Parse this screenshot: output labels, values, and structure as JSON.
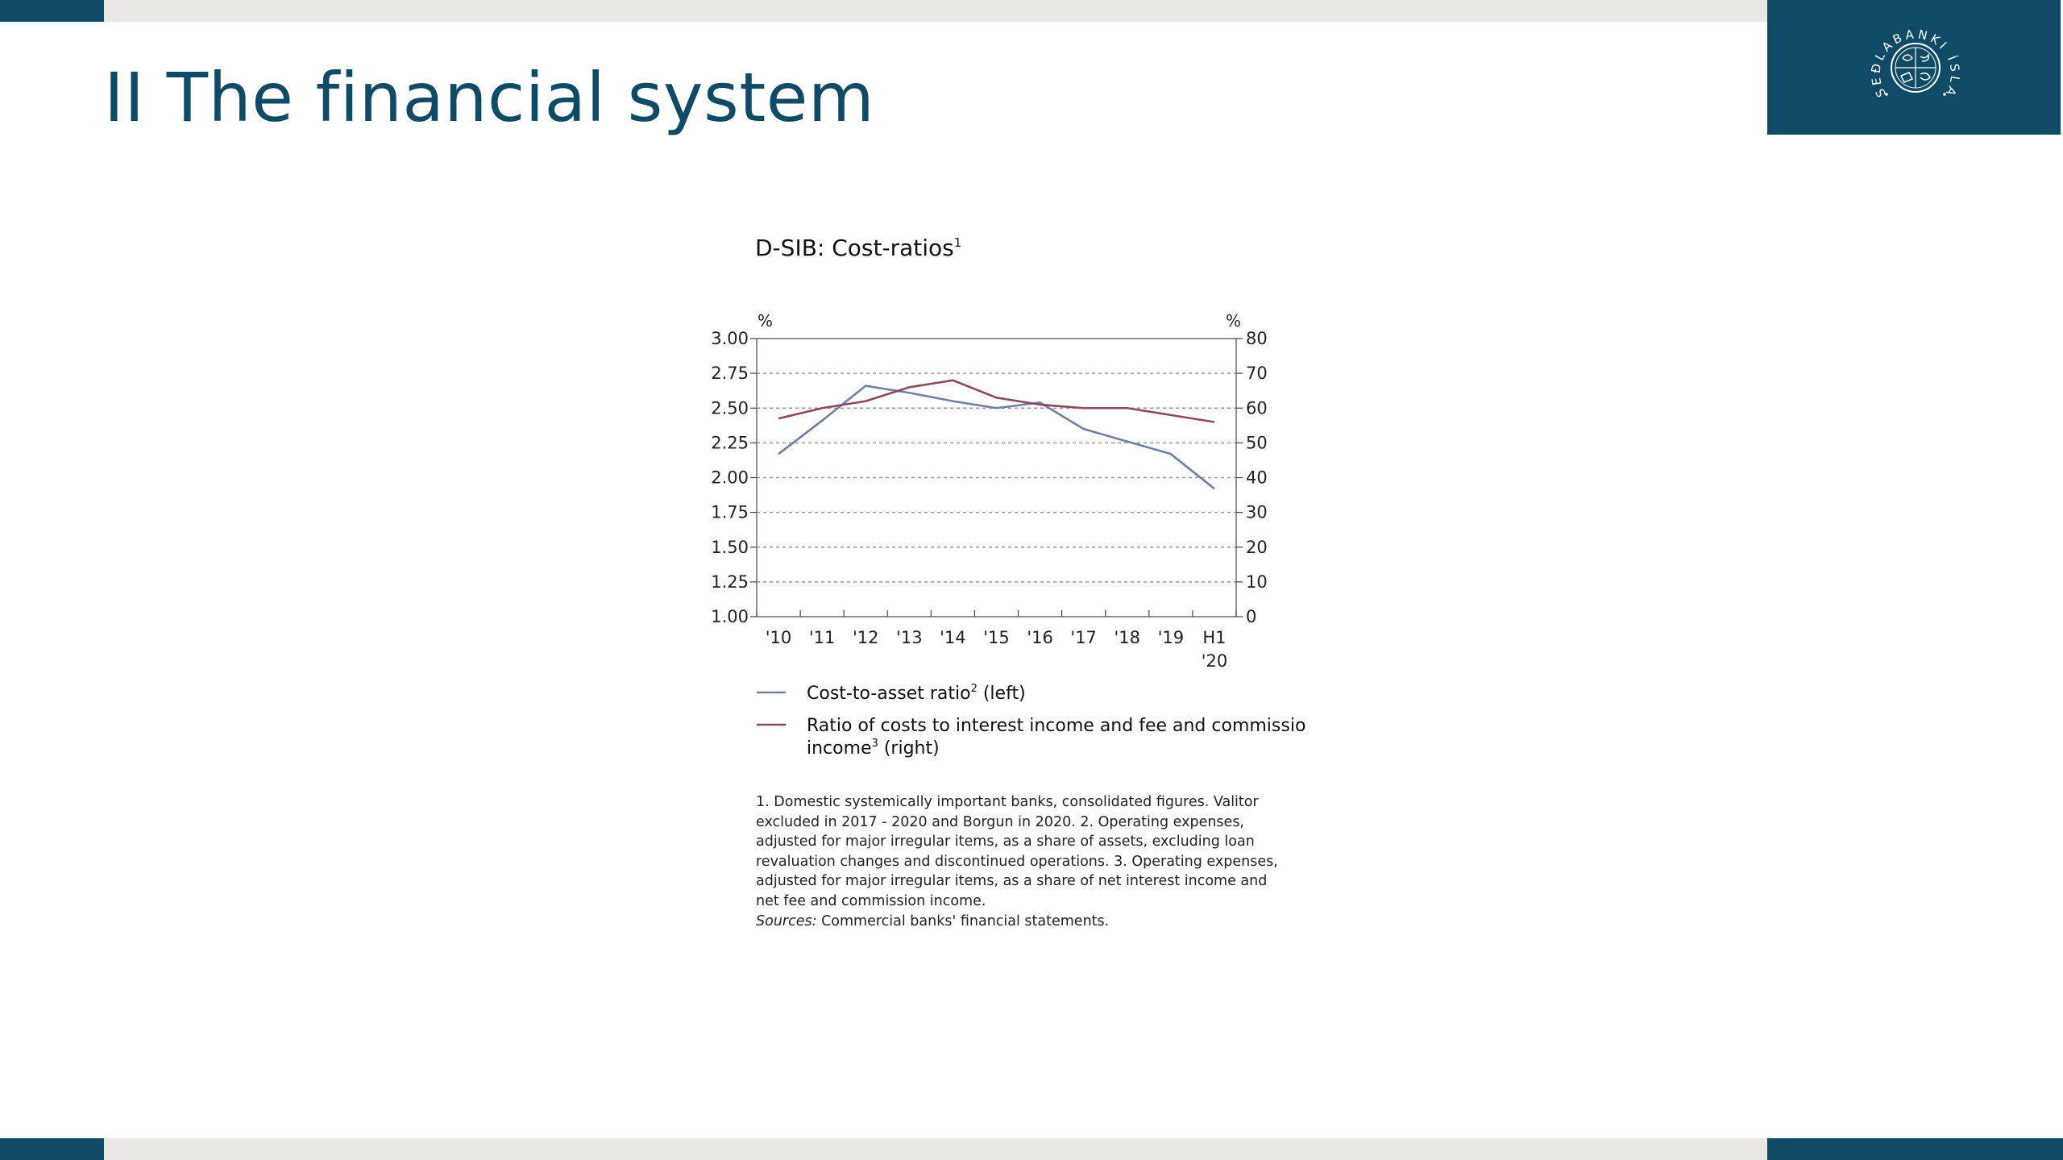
{
  "slide": {
    "title": "II The financial system",
    "logo_text": "SEÐLABANKI ÍSLANDS"
  },
  "colors": {
    "brand": "#0f4a66",
    "band_gray": "#e9e7e3",
    "series_left": "#6f80a3",
    "series_right": "#8a4a62",
    "gridline": "#9a9a9a"
  },
  "chart_data": {
    "type": "line",
    "title": "D-SIB: Cost-ratios",
    "title_superscript": "1",
    "y_left_unit": "%",
    "y_right_unit": "%",
    "y_left_ticks": [
      "3.00",
      "2.75",
      "2.50",
      "2.25",
      "2.00",
      "1.75",
      "1.50",
      "1.25",
      "1.00"
    ],
    "y_right_ticks": [
      "80",
      "70",
      "60",
      "50",
      "40",
      "30",
      "20",
      "10",
      "0"
    ],
    "ylim_left": [
      1.0,
      3.0
    ],
    "ylim_right": [
      0,
      80
    ],
    "grid": "horizontal dashed",
    "categories": [
      "'10",
      "'11",
      "'12",
      "'13",
      "'14",
      "'15",
      "'16",
      "'17",
      "'18",
      "'19",
      "H1 '20"
    ],
    "category_labels": [
      [
        "'10"
      ],
      [
        "'11"
      ],
      [
        "'12"
      ],
      [
        "'13"
      ],
      [
        "'14"
      ],
      [
        "'15"
      ],
      [
        "'16"
      ],
      [
        "'17"
      ],
      [
        "'18"
      ],
      [
        "'19"
      ],
      [
        "H1",
        "'20"
      ]
    ],
    "series": [
      {
        "name": "Cost-to-asset ratio",
        "name_superscript": "2",
        "name_suffix": "(left)",
        "axis": "left",
        "values": [
          2.17,
          2.41,
          2.66,
          2.61,
          2.55,
          2.5,
          2.54,
          2.35,
          2.26,
          2.17,
          1.92
        ]
      },
      {
        "name": "Ratio of costs to interest income and fee and commission income",
        "name_line1": "Ratio of costs to interest income and fee and commission",
        "name_line2": "income",
        "name_superscript": "3",
        "name_suffix": "(right)",
        "axis": "right",
        "values": [
          57,
          60,
          62,
          66,
          68,
          63,
          61,
          60,
          60,
          58,
          56
        ]
      }
    ],
    "legend_position": "bottom"
  },
  "footnote": {
    "lines": [
      "1. Domestic systemically important banks, consolidated figures. Valitor",
      "excluded in 2017 - 2020 and Borgun in 2020. 2. Operating expenses,",
      "adjusted for major irregular items, as a share of assets, excluding loan",
      "revaluation changes and discontinued operations. 3. Operating expenses,",
      "adjusted for major irregular items, as a share of net interest income and",
      "net fee and commission income."
    ],
    "sources_label": "Sources:",
    "sources_text": " Commercial banks' financial statements."
  }
}
